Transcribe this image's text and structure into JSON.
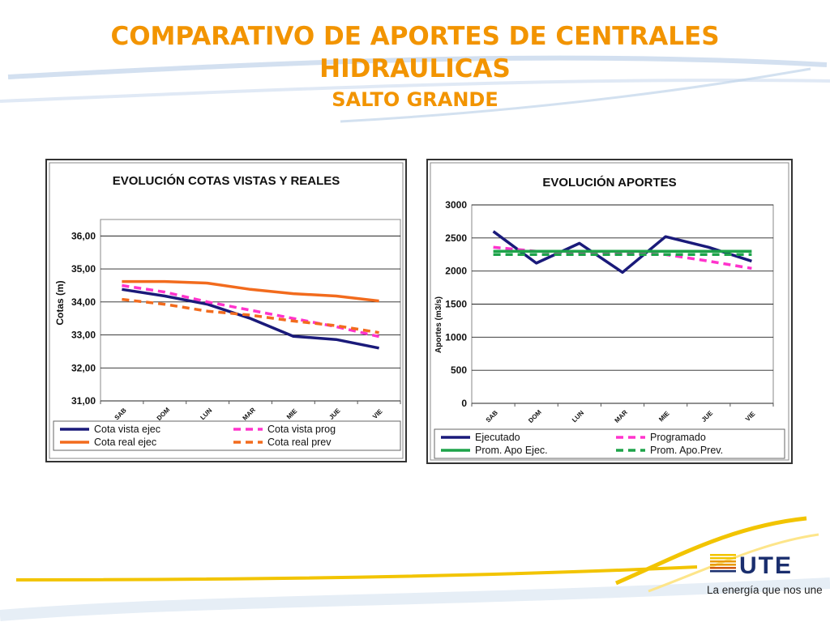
{
  "slide": {
    "title_line1": "COMPARATIVO DE APORTES DE CENTRALES",
    "title_line2": "HIDRAULICAS",
    "subtitle": "SALTO GRANDE",
    "accent_color": "#f29400"
  },
  "brand": {
    "tagline": "La energía que nos une",
    "logo_text": "UTE",
    "logo_color": "#1a2e6e",
    "swoosh_color": "#f2c400"
  },
  "chart_data": [
    {
      "type": "line",
      "title": "EVOLUCIÓN  COTAS VISTAS Y REALES",
      "ylabel": "Cotas (m)",
      "xlabel": "",
      "categories": [
        "SAB",
        "DOM",
        "LUN",
        "MAR",
        "MIE",
        "JUE",
        "VIE"
      ],
      "ylim": [
        31,
        36.5
      ],
      "yticks": [
        "31,00",
        "32,00",
        "33,00",
        "34,00",
        "35,00",
        "36,00"
      ],
      "grid": true,
      "legend_position": "bottom",
      "series": [
        {
          "name": "Cota vista ejec",
          "color": "#1a1a7a",
          "dash": false,
          "values": [
            34.38,
            34.18,
            33.93,
            33.5,
            32.96,
            32.86,
            32.6
          ]
        },
        {
          "name": "Cota vista prog",
          "color": "#ff33cc",
          "dash": true,
          "values": [
            34.5,
            34.3,
            34.0,
            33.75,
            33.5,
            33.25,
            32.95
          ]
        },
        {
          "name": "Cota real ejec",
          "color": "#f26b1d",
          "dash": false,
          "values": [
            34.62,
            34.62,
            34.57,
            34.38,
            34.25,
            34.18,
            34.03
          ]
        },
        {
          "name": "Cota real prev",
          "color": "#f26b1d",
          "dash": true,
          "values": [
            34.08,
            33.93,
            33.72,
            33.6,
            33.42,
            33.28,
            33.07
          ]
        }
      ]
    },
    {
      "type": "line",
      "title": "EVOLUCIÓN  APORTES",
      "ylabel": "Aportes (m3/s)",
      "xlabel": "",
      "categories": [
        "SAB",
        "DOM",
        "LUN",
        "MAR",
        "MIE",
        "JUE",
        "VIE"
      ],
      "ylim": [
        0,
        3000
      ],
      "yticks": [
        "0",
        "500",
        "1000",
        "1500",
        "2000",
        "2500",
        "3000"
      ],
      "grid": true,
      "legend_position": "bottom",
      "series": [
        {
          "name": "Ejecutado",
          "color": "#1a1a7a",
          "dash": false,
          "values": [
            2600,
            2120,
            2420,
            1980,
            2520,
            2360,
            2150
          ]
        },
        {
          "name": "Programado",
          "color": "#ff33cc",
          "dash": true,
          "values": [
            2360,
            2300,
            2280,
            2270,
            2250,
            2150,
            2040
          ]
        },
        {
          "name": "Prom. Apo Ejec.",
          "color": "#1ea34a",
          "dash": false,
          "values": [
            2300,
            2300,
            2300,
            2300,
            2300,
            2300,
            2300
          ]
        },
        {
          "name": "Prom. Apo.Prev.",
          "color": "#1ea34a",
          "dash": true,
          "values": [
            2250,
            2250,
            2250,
            2250,
            2250,
            2250,
            2250
          ]
        }
      ]
    }
  ]
}
